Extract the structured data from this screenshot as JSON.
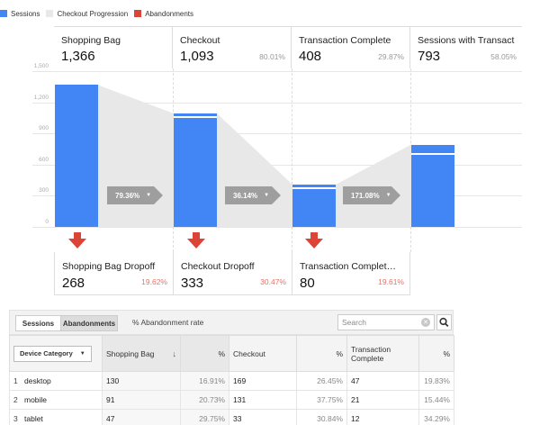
{
  "legend": [
    {
      "label": "Sessions",
      "color": "#4285f4"
    },
    {
      "label": "Checkout Progression",
      "color": "#e8e8e8"
    },
    {
      "label": "Abandonments",
      "color": "#db4437"
    }
  ],
  "chart_data": {
    "type": "bar",
    "categories": [
      "Shopping Bag",
      "Checkout",
      "Transaction Complete",
      "Sessions with Transactions"
    ],
    "values": [
      1366,
      1093,
      408,
      793
    ],
    "percents": [
      "",
      "80.01%",
      "29.87%",
      "58.05%"
    ],
    "y_ticks": [
      "1,500",
      "1,200",
      "900",
      "600",
      "300",
      "0"
    ],
    "ylim": [
      0,
      1500
    ],
    "progression_rates": [
      "79.36%",
      "36.14%",
      "171.08%"
    ],
    "colors": {
      "bar": "#4285f4",
      "progression": "#e8e8e8",
      "arrow": "#db4437"
    }
  },
  "stages": [
    {
      "label": "Shopping Bag",
      "value": "1,366",
      "pct": ""
    },
    {
      "label": "Checkout",
      "value": "1,093",
      "pct": "80.01%"
    },
    {
      "label": "Transaction Complete",
      "value": "408",
      "pct": "29.87%"
    },
    {
      "label": "Sessions with Transactions",
      "value": "793",
      "pct": "58.05%"
    }
  ],
  "dropoffs": [
    {
      "label": "Shopping Bag Dropoff",
      "value": "268",
      "pct": "19.62%"
    },
    {
      "label": "Checkout Dropoff",
      "value": "333",
      "pct": "30.47%"
    },
    {
      "label": "Transaction Complete Dropoff",
      "value": "80",
      "pct": "19.61%"
    }
  ],
  "toolbar": {
    "tab_sessions": "Sessions",
    "tab_abandonments": "Abandonments",
    "abandonment_rate_label": "% Abandonment rate",
    "search_placeholder": "Search"
  },
  "table": {
    "dimension": "Device Category",
    "col_shopping_bag": "Shopping Bag",
    "col_checkout": "Checkout",
    "col_transaction": "Transaction Complete",
    "col_pct": "%",
    "rows": [
      {
        "idx": "1",
        "device": "desktop",
        "bag": "130",
        "bag_pct": "16.91%",
        "checkout": "169",
        "checkout_pct": "26.45%",
        "tx": "47",
        "tx_pct": "19.83%"
      },
      {
        "idx": "2",
        "device": "mobile",
        "bag": "91",
        "bag_pct": "20.73%",
        "checkout": "131",
        "checkout_pct": "37.75%",
        "tx": "21",
        "tx_pct": "15.44%"
      },
      {
        "idx": "3",
        "device": "tablet",
        "bag": "47",
        "bag_pct": "29.75%",
        "checkout": "33",
        "checkout_pct": "30.84%",
        "tx": "12",
        "tx_pct": "34.29%"
      }
    ]
  }
}
